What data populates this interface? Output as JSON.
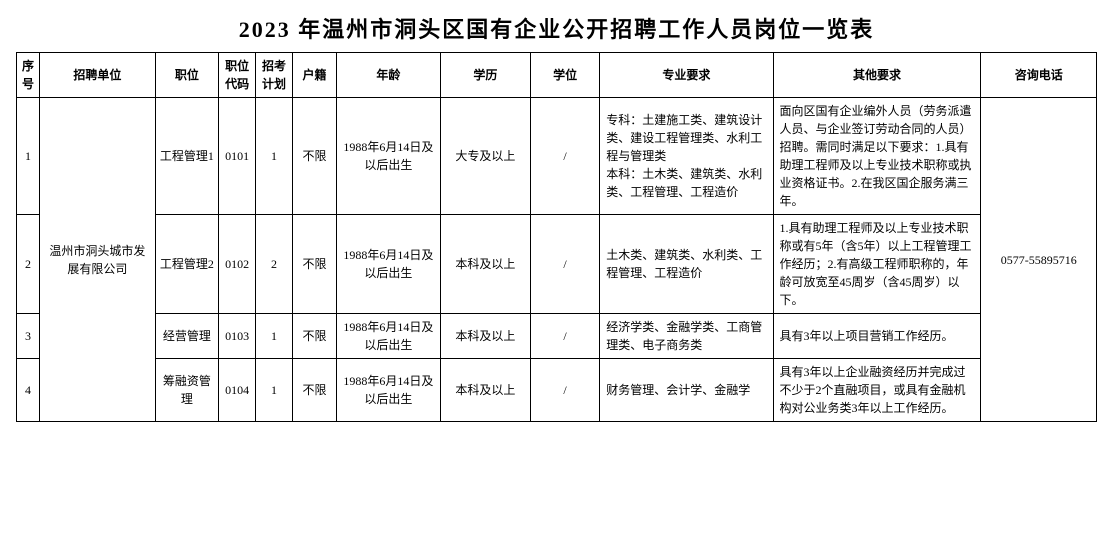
{
  "title": "2023 年温州市洞头区国有企业公开招聘工作人员岗位一览表",
  "headers": {
    "seq": "序号",
    "unit": "招聘单位",
    "position": "职位",
    "code": "职位代码",
    "plan": "招考计划",
    "huji": "户籍",
    "age": "年龄",
    "edu": "学历",
    "degree": "学位",
    "major": "专业要求",
    "other": "其他要求",
    "tel": "咨询电话"
  },
  "unit": "温州市洞头城市发展有限公司",
  "tel": "0577-55895716",
  "rows": [
    {
      "seq": "1",
      "position": "工程管理1",
      "code": "0101",
      "plan": "1",
      "huji": "不限",
      "age": "1988年6月14日及以后出生",
      "edu": "大专及以上",
      "degree": "/",
      "major": "专科：土建施工类、建筑设计类、建设工程管理类、水利工程与管理类\n本科：土木类、建筑类、水利类、工程管理、工程造价",
      "other": "面向区国有企业编外人员（劳务派遣人员、与企业签订劳动合同的人员）招聘。需同时满足以下要求：1.具有助理工程师及以上专业技术职称或执业资格证书。2.在我区国企服务满三年。"
    },
    {
      "seq": "2",
      "position": "工程管理2",
      "code": "0102",
      "plan": "2",
      "huji": "不限",
      "age": "1988年6月14日及以后出生",
      "edu": "本科及以上",
      "degree": "/",
      "major": "土木类、建筑类、水利类、工程管理、工程造价",
      "other": "1.具有助理工程师及以上专业技术职称或有5年（含5年）以上工程管理工作经历；2.有高级工程师职称的，年龄可放宽至45周岁（含45周岁）以下。"
    },
    {
      "seq": "3",
      "position": "经营管理",
      "code": "0103",
      "plan": "1",
      "huji": "不限",
      "age": "1988年6月14日及以后出生",
      "edu": "本科及以上",
      "degree": "/",
      "major": "经济学类、金融学类、工商管理类、电子商务类",
      "other": "具有3年以上项目营销工作经历。"
    },
    {
      "seq": "4",
      "position": "筹融资管理",
      "code": "0104",
      "plan": "1",
      "huji": "不限",
      "age": "1988年6月14日及以后出生",
      "edu": "本科及以上",
      "degree": "/",
      "major": "财务管理、会计学、金融学",
      "other": "具有3年以上企业融资经历并完成过不少于2个直融项目，或具有金融机构对公业务类3年以上工作经历。"
    }
  ]
}
